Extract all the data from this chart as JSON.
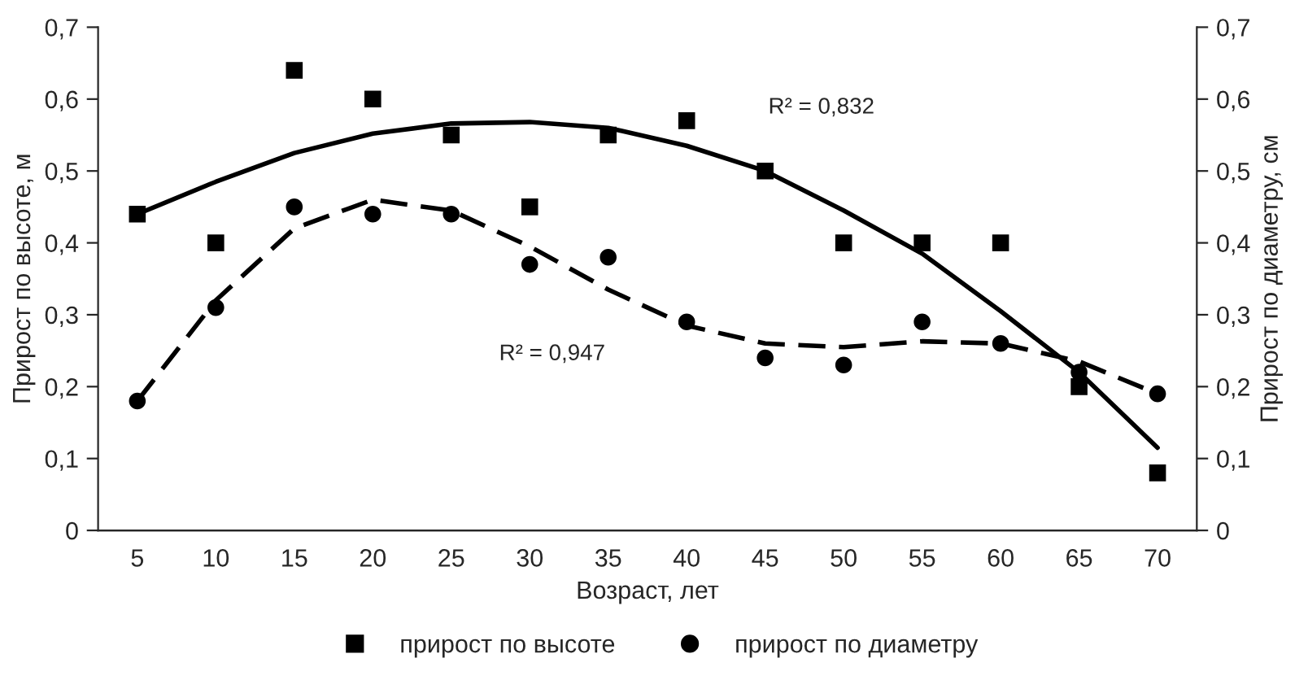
{
  "chart_data": {
    "type": "scatter",
    "xlabel": "Возраст, лет",
    "ylabel": "Прирост по высоте, м",
    "y2label": "Прирост по диаметру, см",
    "categories": [
      "5",
      "10",
      "15",
      "20",
      "25",
      "30",
      "35",
      "40",
      "45",
      "50",
      "55",
      "60",
      "65",
      "70"
    ],
    "series": [
      {
        "name": "прирост по высоте",
        "marker": "square",
        "color": "#000000",
        "values": [
          0.44,
          0.4,
          0.64,
          0.6,
          0.55,
          0.45,
          0.55,
          0.57,
          0.5,
          0.4,
          0.4,
          0.4,
          0.2,
          0.08
        ]
      },
      {
        "name": "прирост по диаметру",
        "marker": "circle",
        "color": "#000000",
        "values": [
          0.18,
          0.31,
          0.45,
          0.44,
          0.44,
          0.37,
          0.38,
          0.29,
          0.24,
          0.23,
          0.29,
          0.26,
          0.22,
          0.19
        ]
      },
      {
        "type": "line",
        "marker": "none",
        "line_style": "solid",
        "color": "#000000",
        "values": [
          0.44,
          0.485,
          0.525,
          0.552,
          0.566,
          0.568,
          0.56,
          0.535,
          0.5,
          0.445,
          0.385,
          0.305,
          0.22,
          0.115
        ]
      },
      {
        "type": "line",
        "marker": "none",
        "line_style": "dashed",
        "color": "#000000",
        "values": [
          0.18,
          0.32,
          0.42,
          0.46,
          0.445,
          0.395,
          0.335,
          0.285,
          0.26,
          0.255,
          0.263,
          0.26,
          0.235,
          0.19
        ]
      }
    ],
    "ylim": [
      0,
      0.7
    ],
    "yticks": [
      {
        "value": 0,
        "label": "0"
      },
      {
        "value": 0.1,
        "label": "0,1"
      },
      {
        "value": 0.2,
        "label": "0,2"
      },
      {
        "value": 0.3,
        "label": "0,3"
      },
      {
        "value": 0.4,
        "label": "0,4"
      },
      {
        "value": 0.5,
        "label": "0,5"
      },
      {
        "value": 0.6,
        "label": "0,6"
      },
      {
        "value": 0.7,
        "label": "0,7"
      }
    ],
    "y2lim": [
      0,
      0.7
    ],
    "y2ticks": [
      {
        "value": 0,
        "label": "0"
      },
      {
        "value": 0.1,
        "label": "0,1"
      },
      {
        "value": 0.2,
        "label": "0,2"
      },
      {
        "value": 0.3,
        "label": "0,3"
      },
      {
        "value": 0.4,
        "label": "0,4"
      },
      {
        "value": 0.5,
        "label": "0,5"
      },
      {
        "value": 0.6,
        "label": "0,6"
      },
      {
        "value": 0.7,
        "label": "0,7"
      }
    ],
    "annotations": [
      "R² = 0,832",
      "R² = 0,947"
    ],
    "grid": false,
    "legend": "bottom"
  }
}
